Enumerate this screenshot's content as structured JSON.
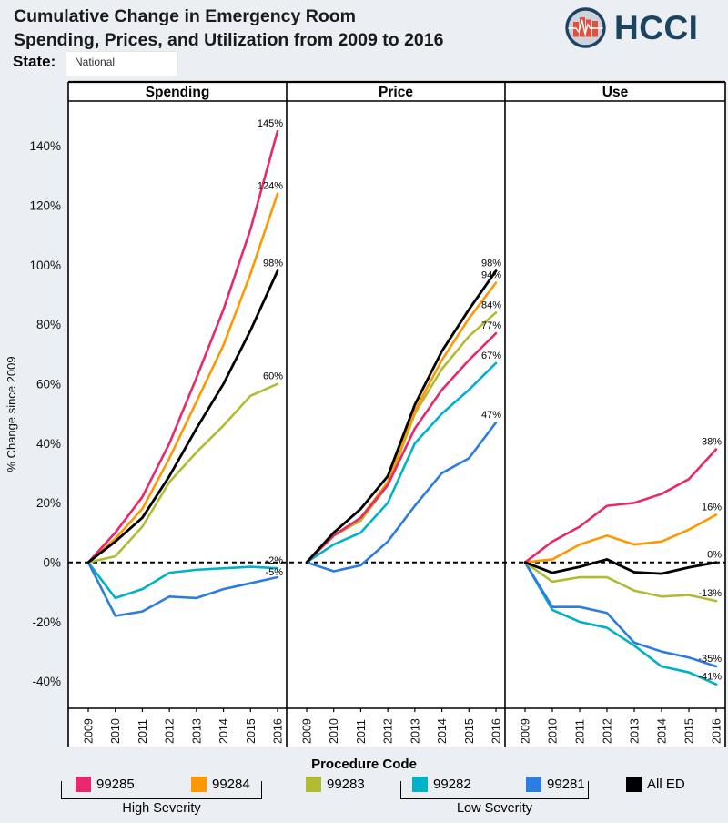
{
  "header": {
    "title_line1": "Cumulative Change in Emergency Room",
    "title_line2": "Spending, Prices, and Utilization from 2009 to 2016",
    "state_label": "State:",
    "state_value": "National",
    "logo_text": "HCCI"
  },
  "colors": {
    "99285": "#e8276c",
    "99284": "#ff9800",
    "99283": "#b1bb31",
    "99282": "#00b2c8",
    "99281": "#2d7ce0",
    "All ED": "#000000",
    "background": "#ebeef3",
    "label_text": "#000000",
    "logo_navy": "#1a445f",
    "logo_red": "#e2503c",
    "logo_inner": "#ccd3dc"
  },
  "chart_data": {
    "type": "line",
    "x": [
      "2009",
      "2010",
      "2011",
      "2012",
      "2013",
      "2014",
      "2015",
      "2016"
    ],
    "ylabel": "% Change since 2009",
    "ylim": [
      -50,
      155
    ],
    "yticks": [
      -40,
      -20,
      0,
      20,
      40,
      60,
      80,
      100,
      120,
      140
    ],
    "grid": false,
    "zero_line": "dashed",
    "panels": [
      {
        "title": "Spending",
        "series": [
          {
            "name": "99282",
            "values": [
              0,
              -12,
              -9,
              -3.5,
              -2.5,
              -2,
              -1.5,
              -2
            ],
            "end_label": "-2%"
          },
          {
            "name": "99281",
            "values": [
              0,
              -18,
              -16.5,
              -11.5,
              -12,
              -9,
              -7,
              -5
            ],
            "end_label": "-5%"
          },
          {
            "name": "99283",
            "values": [
              0,
              2,
              12,
              27,
              37,
              46,
              56,
              60
            ],
            "end_label": "60%"
          },
          {
            "name": "99284",
            "values": [
              0,
              8,
              18,
              35,
              54,
              73,
              97,
              124
            ],
            "end_label": "124%"
          },
          {
            "name": "99285",
            "values": [
              0,
              10,
              22,
              40,
              62,
              85,
              112,
              145
            ],
            "end_label": "145%"
          },
          {
            "name": "All ED",
            "values": [
              0,
              7,
              15,
              29,
              45,
              60,
              78,
              98
            ],
            "end_label": "98%"
          }
        ]
      },
      {
        "title": "Price",
        "series": [
          {
            "name": "99282",
            "values": [
              0,
              6,
              10,
              20,
              40,
              50,
              58,
              67
            ],
            "end_label": "67%"
          },
          {
            "name": "99281",
            "values": [
              0,
              -3,
              -1,
              7,
              19,
              30,
              35,
              47
            ],
            "end_label": "47%"
          },
          {
            "name": "99283",
            "values": [
              0,
              9,
              14,
              26,
              50,
              65,
              76,
              84
            ],
            "end_label": "84%"
          },
          {
            "name": "99284",
            "values": [
              0,
              9,
              15,
              27,
              51,
              68,
              82,
              94
            ],
            "end_label": "94%"
          },
          {
            "name": "99285",
            "values": [
              0,
              9,
              15,
              26,
              45,
              58,
              68,
              77
            ],
            "end_label": "77%"
          },
          {
            "name": "All ED",
            "values": [
              0,
              10,
              18,
              29,
              53,
              71,
              85,
              98
            ],
            "end_label": "98%"
          }
        ]
      },
      {
        "title": "Use",
        "series": [
          {
            "name": "99282",
            "values": [
              0,
              -16,
              -20,
              -22,
              -28,
              -35,
              -37,
              -41
            ],
            "end_label": "-41%"
          },
          {
            "name": "99281",
            "values": [
              0,
              -15,
              -15,
              -17,
              -27,
              -30,
              -32,
              -35
            ],
            "end_label": "-35%"
          },
          {
            "name": "99283",
            "values": [
              0,
              -6.5,
              -5,
              -5,
              -9.5,
              -11.5,
              -11,
              -13
            ],
            "end_label": "-13%"
          },
          {
            "name": "99284",
            "values": [
              0,
              1,
              6,
              9,
              6,
              7,
              11,
              16
            ],
            "end_label": "16%"
          },
          {
            "name": "99285",
            "values": [
              0,
              7,
              12,
              19,
              20,
              23,
              28,
              38
            ],
            "end_label": "38%"
          },
          {
            "name": "All ED",
            "values": [
              0,
              -3.5,
              -1.5,
              1,
              -3.3,
              -3.8,
              -1.7,
              0
            ],
            "end_label": "0%"
          }
        ]
      }
    ]
  },
  "legend": {
    "title": "Procedure Code",
    "items": [
      {
        "label": "99285",
        "color_key": "99285"
      },
      {
        "label": "99284",
        "color_key": "99284"
      },
      {
        "label": "99283",
        "color_key": "99283"
      },
      {
        "label": "99282",
        "color_key": "99282"
      },
      {
        "label": "99281",
        "color_key": "99281"
      },
      {
        "label": "All ED",
        "color_key": "All ED"
      }
    ],
    "groups": [
      {
        "label": "High Severity"
      },
      {
        "label": "Low Severity"
      }
    ]
  }
}
